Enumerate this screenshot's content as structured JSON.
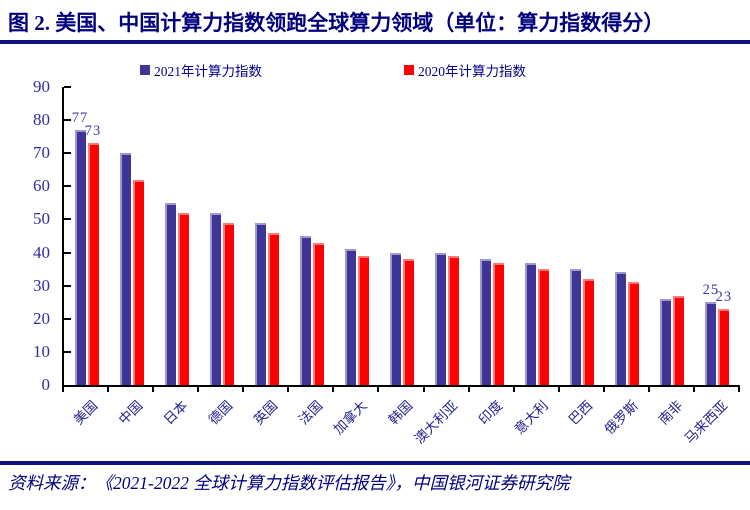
{
  "header": {
    "title": "图 2. 美国、中国计算力指数领跑全球算力领域（单位：算力指数得分）"
  },
  "footer": {
    "source": "资料来源：《2021-2022 全球计算力指数评估报告》，中国银河证券研究院"
  },
  "colors": {
    "accent_navy": "#12127e",
    "bar_2021": "#3e3597",
    "bar_2020": "#fc0100",
    "axis_text": "#2e2e9e",
    "value_label_text": "#3c3cac"
  },
  "chart_data": {
    "type": "bar",
    "title": "图 2. 美国、中国计算力指数领跑全球算力领域（单位：算力指数得分）",
    "xlabel": "",
    "ylabel": "算力指数得分",
    "ylim": [
      0,
      90
    ],
    "ytick_interval": 10,
    "grid": false,
    "legend_position": "top",
    "categories": [
      "美国",
      "中国",
      "日本",
      "德国",
      "英国",
      "法国",
      "加拿大",
      "韩国",
      "澳大利亚",
      "印度",
      "意大利",
      "巴西",
      "俄罗斯",
      "南非",
      "马来西亚"
    ],
    "series": [
      {
        "name": "2021年计算力指数",
        "color": "#3e3597",
        "values": [
          77,
          70,
          55,
          52,
          49,
          45,
          41,
          40,
          40,
          38,
          37,
          35,
          34,
          26,
          25
        ]
      },
      {
        "name": "2020年计算力指数",
        "color": "#fc0100",
        "values": [
          73,
          62,
          52,
          49,
          46,
          43,
          39,
          38,
          39,
          37,
          35,
          32,
          31,
          27,
          23
        ]
      }
    ],
    "labeled_categories": [
      "美国",
      "马来西亚"
    ]
  }
}
